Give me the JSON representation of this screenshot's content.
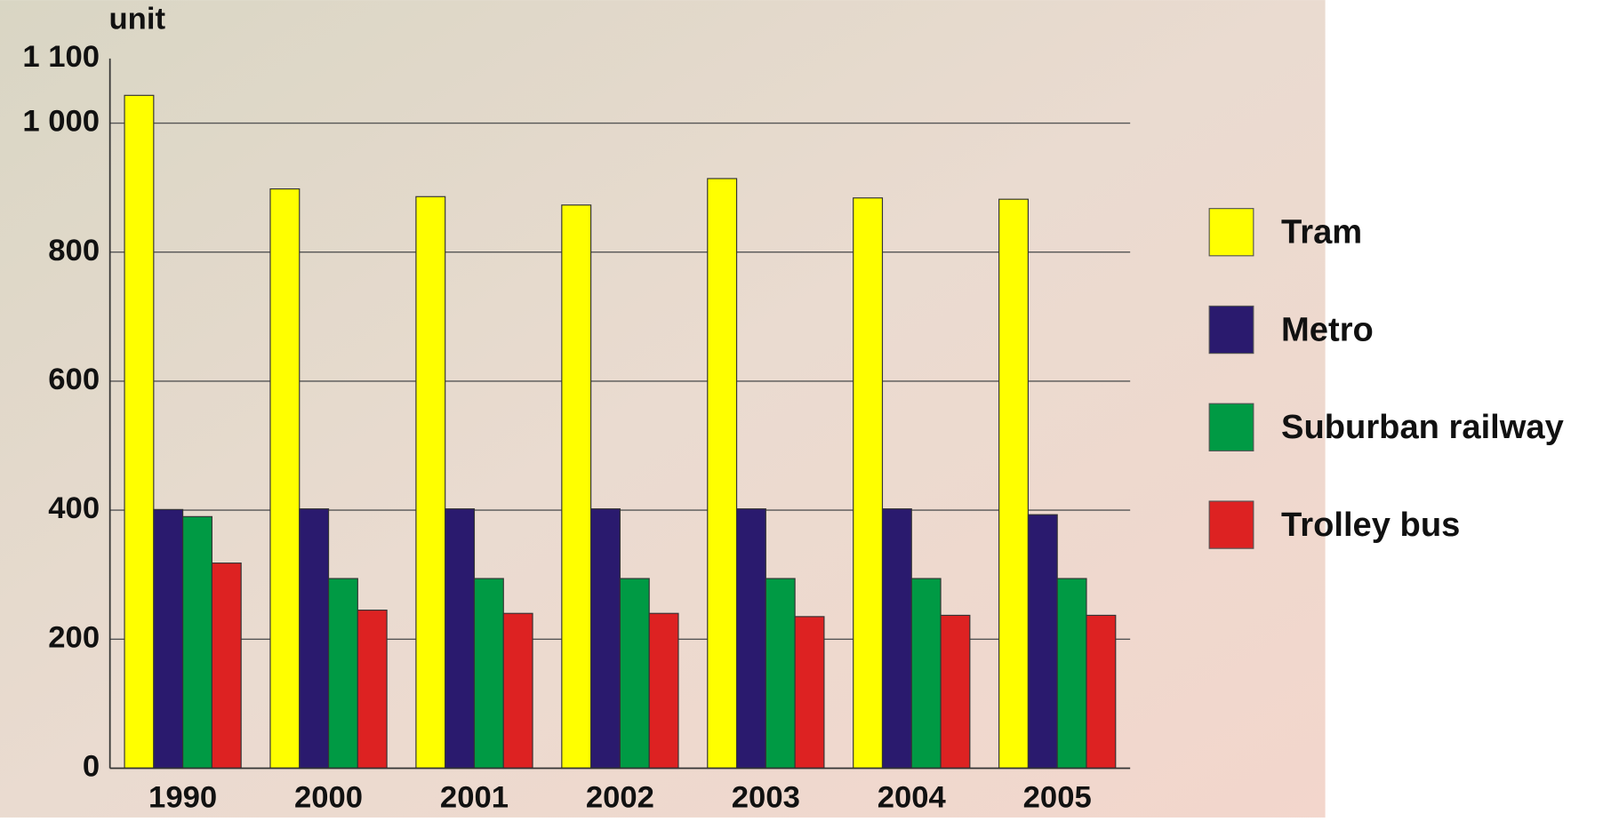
{
  "chart_data": {
    "type": "bar",
    "y_label": "unit",
    "categories": [
      "1990",
      "2000",
      "2001",
      "2002",
      "2003",
      "2004",
      "2005"
    ],
    "series": [
      {
        "name": "Tram",
        "color": "#ffff00",
        "values": [
          1043,
          898,
          886,
          873,
          914,
          884,
          882
        ]
      },
      {
        "name": "Metro",
        "color": "#2a1a6e",
        "values": [
          401,
          402,
          402,
          402,
          402,
          402,
          393
        ]
      },
      {
        "name": "Suburban railway",
        "color": "#009a44",
        "values": [
          390,
          294,
          294,
          294,
          294,
          294,
          294
        ]
      },
      {
        "name": "Trolley bus",
        "color": "#dd2222",
        "values": [
          318,
          245,
          240,
          240,
          235,
          237,
          237
        ]
      }
    ],
    "ylim": [
      0,
      1100
    ],
    "yticks": [
      0,
      200,
      400,
      600,
      800,
      {
        "value": 1000,
        "label": "1 000"
      },
      {
        "value": 1100,
        "label": "1 100"
      }
    ],
    "grid": true,
    "legend": "right"
  }
}
